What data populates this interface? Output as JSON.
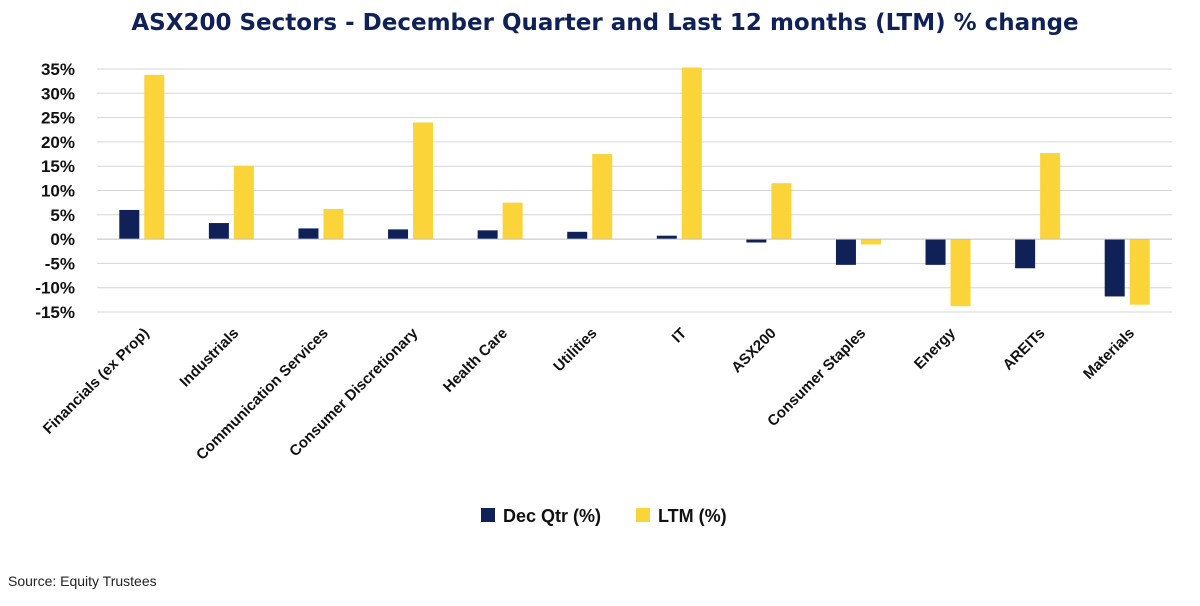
{
  "chart_data": {
    "type": "bar",
    "title": "ASX200 Sectors - December Quarter and Last 12 months (LTM) % change",
    "xlabel": "",
    "ylabel": "",
    "ylim": [
      -15,
      35
    ],
    "yticks": [
      35,
      30,
      25,
      20,
      15,
      10,
      5,
      0,
      -5,
      -10,
      -15
    ],
    "ytick_labels": [
      "35%",
      "30%",
      "25%",
      "20%",
      "15%",
      "10%",
      "5%",
      "0%",
      "-5%",
      "-10%",
      "-15%"
    ],
    "grid": true,
    "legend_position": "bottom",
    "categories": [
      "Financials (ex Prop)",
      "Industrials",
      "Communication Services",
      "Consumer Discretionary",
      "Health Care",
      "Utilities",
      "IT",
      "ASX200",
      "Consumer Staples",
      "Energy",
      "AREITs",
      "Materials"
    ],
    "series": [
      {
        "name": "Dec Qtr (%)",
        "color": "#0f2157",
        "values": [
          6.0,
          3.3,
          2.2,
          2.0,
          1.8,
          1.5,
          0.7,
          -0.7,
          -5.3,
          -5.3,
          -6.0,
          -11.8
        ]
      },
      {
        "name": "LTM (%)",
        "color": "#fbd43a",
        "values": [
          33.8,
          15.1,
          6.2,
          24.0,
          7.5,
          17.5,
          35.3,
          11.5,
          -1.1,
          -13.8,
          17.7,
          -13.5
        ]
      }
    ]
  },
  "source_note": "Source: Equity Trustees"
}
